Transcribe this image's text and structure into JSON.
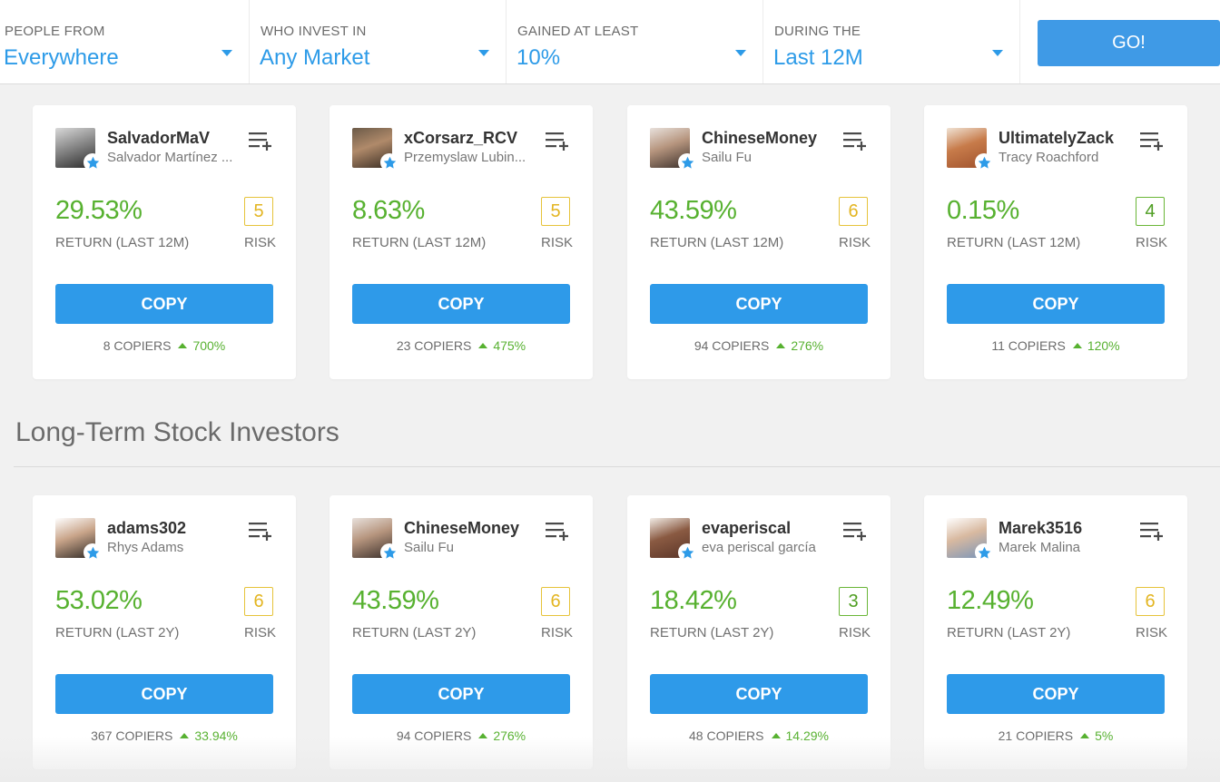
{
  "filters": [
    {
      "label": "PEOPLE FROM",
      "value": "Everywhere"
    },
    {
      "label": "WHO INVEST IN",
      "value": "Any Market"
    },
    {
      "label": "GAINED AT LEAST",
      "value": "10%"
    },
    {
      "label": "DURING THE",
      "value": "Last 12M"
    }
  ],
  "go_label": "GO!",
  "section_title": "Long-Term Stock Investors",
  "cards": [
    {
      "username": "SalvadorMaV",
      "fullname": "Salvador Martínez ...",
      "return": "29.53%",
      "return_label": "RETURN (LAST 12M)",
      "risk": "5",
      "risk_label": "RISK",
      "copy_label": "COPY",
      "copiers": "8 COPIERS",
      "gain": "700%"
    },
    {
      "username": "xCorsarz_RCV",
      "fullname": "Przemyslaw Lubin...",
      "return": "8.63%",
      "return_label": "RETURN (LAST 12M)",
      "risk": "5",
      "risk_label": "RISK",
      "copy_label": "COPY",
      "copiers": "23 COPIERS",
      "gain": "475%"
    },
    {
      "username": "ChineseMoney",
      "fullname": "Sailu Fu",
      "return": "43.59%",
      "return_label": "RETURN (LAST 12M)",
      "risk": "6",
      "risk_label": "RISK",
      "copy_label": "COPY",
      "copiers": "94 COPIERS",
      "gain": "276%"
    },
    {
      "username": "UltimatelyZack",
      "fullname": "Tracy Roachford",
      "return": "0.15%",
      "return_label": "RETURN (LAST 12M)",
      "risk": "4",
      "risk_label": "RISK",
      "copy_label": "COPY",
      "copiers": "11 COPIERS",
      "gain": "120%"
    },
    {
      "username": "adams302",
      "fullname": "Rhys Adams",
      "return": "53.02%",
      "return_label": "RETURN (LAST 2Y)",
      "risk": "6",
      "risk_label": "RISK",
      "copy_label": "COPY",
      "copiers": "367 COPIERS",
      "gain": "33.94%"
    },
    {
      "username": "ChineseMoney",
      "fullname": "Sailu Fu",
      "return": "43.59%",
      "return_label": "RETURN (LAST 2Y)",
      "risk": "6",
      "risk_label": "RISK",
      "copy_label": "COPY",
      "copiers": "94 COPIERS",
      "gain": "276%"
    },
    {
      "username": "evaperiscal",
      "fullname": "eva periscal garcía",
      "return": "18.42%",
      "return_label": "RETURN (LAST 2Y)",
      "risk": "3",
      "risk_label": "RISK",
      "copy_label": "COPY",
      "copiers": "48 COPIERS",
      "gain": "14.29%"
    },
    {
      "username": "Marek3516",
      "fullname": "Marek Malina",
      "return": "12.49%",
      "return_label": "RETURN (LAST 2Y)",
      "risk": "6",
      "risk_label": "RISK",
      "copy_label": "COPY",
      "copiers": "21 COPIERS",
      "gain": "5%"
    }
  ],
  "colors": {
    "accent_blue": "#2e9ae9",
    "return_green": "#57b130",
    "risk_yellow": "#e3b521",
    "risk_green": "#4f9e22"
  },
  "icons": {
    "filter_caret": "chevron-down-icon",
    "popular_investor": "star-icon",
    "watchlist": "add-to-list-icon",
    "gain_arrow": "triangle-up-icon"
  }
}
